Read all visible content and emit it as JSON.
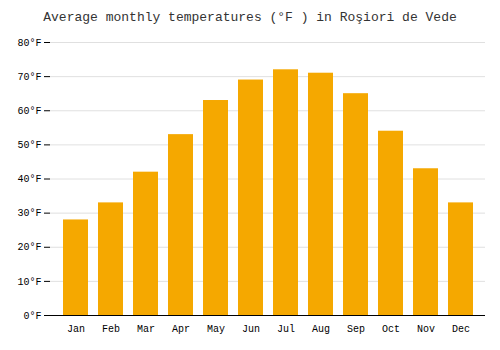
{
  "chart_data": {
    "type": "bar",
    "title": "Average monthly temperatures (°F ) in Roşiori de Vede",
    "categories": [
      "Jan",
      "Feb",
      "Mar",
      "Apr",
      "May",
      "Jun",
      "Jul",
      "Aug",
      "Sep",
      "Oct",
      "Nov",
      "Dec"
    ],
    "values": [
      28,
      33,
      42,
      53,
      63,
      69,
      72,
      71,
      65,
      54,
      43,
      33
    ],
    "color": "#F5A800",
    "ylim": [
      0,
      80
    ],
    "yticks": [
      {
        "value": 0,
        "label": "0°F"
      },
      {
        "value": 10,
        "label": "10°F"
      },
      {
        "value": 20,
        "label": "20°F"
      },
      {
        "value": 30,
        "label": "30°F"
      },
      {
        "value": 40,
        "label": "40°F"
      },
      {
        "value": 50,
        "label": "50°F"
      },
      {
        "value": 60,
        "label": "60°F"
      },
      {
        "value": 70,
        "label": "70°F"
      },
      {
        "value": 80,
        "label": "80°F"
      }
    ],
    "grid": true
  }
}
